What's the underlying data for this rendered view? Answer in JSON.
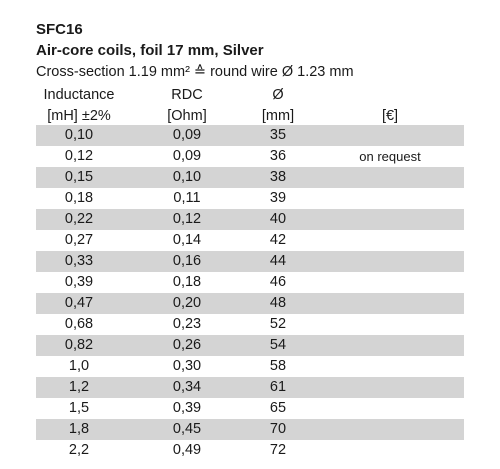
{
  "header": {
    "code": "SFC16",
    "title": "Air-core coils, foil 17 mm, Silver",
    "subtitle": "Cross-section 1.19 mm² ≙ round wire Ø 1.23 mm"
  },
  "columns": {
    "inductance": {
      "label": "Inductance",
      "unit": "[mH] ±2%"
    },
    "rdc": {
      "label": "RDC",
      "unit": "[Ohm]"
    },
    "diameter": {
      "label": "Ø",
      "unit": "[mm]"
    },
    "price": {
      "label": "",
      "unit": "[€]"
    }
  },
  "rows": [
    {
      "inductance": "0,10",
      "rdc": "0,09",
      "diameter": "35",
      "price": ""
    },
    {
      "inductance": "0,12",
      "rdc": "0,09",
      "diameter": "36",
      "price": "on request"
    },
    {
      "inductance": "0,15",
      "rdc": "0,10",
      "diameter": "38",
      "price": ""
    },
    {
      "inductance": "0,18",
      "rdc": "0,11",
      "diameter": "39",
      "price": ""
    },
    {
      "inductance": "0,22",
      "rdc": "0,12",
      "diameter": "40",
      "price": ""
    },
    {
      "inductance": "0,27",
      "rdc": "0,14",
      "diameter": "42",
      "price": ""
    },
    {
      "inductance": "0,33",
      "rdc": "0,16",
      "diameter": "44",
      "price": ""
    },
    {
      "inductance": "0,39",
      "rdc": "0,18",
      "diameter": "46",
      "price": ""
    },
    {
      "inductance": "0,47",
      "rdc": "0,20",
      "diameter": "48",
      "price": ""
    },
    {
      "inductance": "0,68",
      "rdc": "0,23",
      "diameter": "52",
      "price": ""
    },
    {
      "inductance": "0,82",
      "rdc": "0,26",
      "diameter": "54",
      "price": ""
    },
    {
      "inductance": "1,0",
      "rdc": "0,30",
      "diameter": "58",
      "price": ""
    },
    {
      "inductance": "1,2",
      "rdc": "0,34",
      "diameter": "61",
      "price": ""
    },
    {
      "inductance": "1,5",
      "rdc": "0,39",
      "diameter": "65",
      "price": ""
    },
    {
      "inductance": "1,8",
      "rdc": "0,45",
      "diameter": "70",
      "price": ""
    },
    {
      "inductance": "2,2",
      "rdc": "0,49",
      "diameter": "72",
      "price": ""
    }
  ],
  "colors": {
    "row_shade": "#d4d4d4",
    "text": "#1a1a1a"
  }
}
